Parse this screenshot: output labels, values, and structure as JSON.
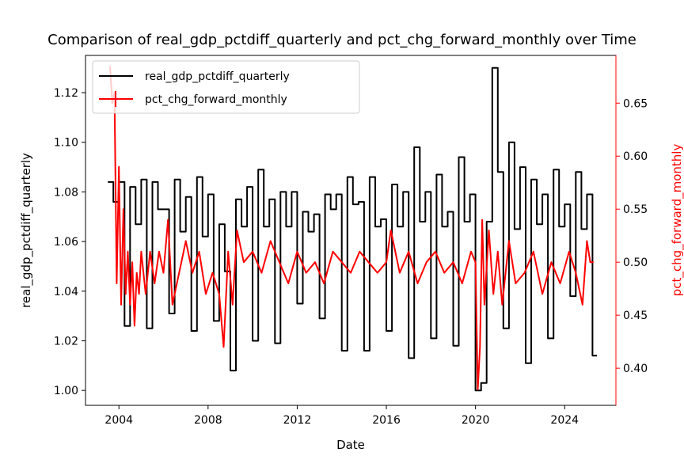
{
  "chart_data": {
    "type": "line",
    "title": "Comparison of real_gdp_pctdiff_quarterly and pct_chg_forward_monthly over Time",
    "xlabel": "Date",
    "ylabel_left": "real_gdp_pctdiff_quarterly",
    "ylabel_right": "pct_chg_forward_monthly",
    "xlim": [
      2002.5,
      2026.3
    ],
    "ylim_left": [
      0.994,
      1.135
    ],
    "ylim_right": [
      0.365,
      0.695
    ],
    "x_ticks": [
      2004,
      2008,
      2012,
      2016,
      2020,
      2024
    ],
    "x_tick_labels": [
      "2004",
      "2008",
      "2012",
      "2016",
      "2020",
      "2024"
    ],
    "y_left_ticks": [
      1.0,
      1.02,
      1.04,
      1.06,
      1.08,
      1.1,
      1.12
    ],
    "y_left_tick_labels": [
      "1.00",
      "1.02",
      "1.04",
      "1.06",
      "1.08",
      "1.10",
      "1.12"
    ],
    "y_right_ticks": [
      0.4,
      0.45,
      0.5,
      0.55,
      0.6,
      0.65
    ],
    "y_right_tick_labels": [
      "0.40",
      "0.45",
      "0.50",
      "0.55",
      "0.60",
      "0.65"
    ],
    "legend_position": "top-left",
    "grid": false,
    "series": [
      {
        "name": "real_gdp_pctdiff_quarterly",
        "axis": "left",
        "style": "step",
        "color": "#000000",
        "x": [
          2003.5,
          2003.75,
          2004.0,
          2004.25,
          2004.5,
          2004.75,
          2005.0,
          2005.25,
          2005.5,
          2005.75,
          2006.0,
          2006.25,
          2006.5,
          2006.75,
          2007.0,
          2007.25,
          2007.5,
          2007.75,
          2008.0,
          2008.25,
          2008.5,
          2008.75,
          2009.0,
          2009.25,
          2009.5,
          2009.75,
          2010.0,
          2010.25,
          2010.5,
          2010.75,
          2011.0,
          2011.25,
          2011.5,
          2011.75,
          2012.0,
          2012.25,
          2012.5,
          2012.75,
          2013.0,
          2013.25,
          2013.5,
          2013.75,
          2014.0,
          2014.25,
          2014.5,
          2014.75,
          2015.0,
          2015.25,
          2015.5,
          2015.75,
          2016.0,
          2016.25,
          2016.5,
          2016.75,
          2017.0,
          2017.25,
          2017.5,
          2017.75,
          2018.0,
          2018.25,
          2018.5,
          2018.75,
          2019.0,
          2019.25,
          2019.5,
          2019.75,
          2020.0,
          2020.25,
          2020.5,
          2020.75,
          2021.0,
          2021.25,
          2021.5,
          2021.75,
          2022.0,
          2022.25,
          2022.5,
          2022.75,
          2023.0,
          2023.25,
          2023.5,
          2023.75,
          2024.0,
          2024.25,
          2024.5,
          2024.75,
          2025.0,
          2025.25
        ],
        "y": [
          1.084,
          1.076,
          1.084,
          1.026,
          1.082,
          1.067,
          1.085,
          1.025,
          1.084,
          1.073,
          1.073,
          1.031,
          1.085,
          1.064,
          1.078,
          1.024,
          1.086,
          1.062,
          1.079,
          1.028,
          1.067,
          1.048,
          1.008,
          1.077,
          1.066,
          1.082,
          1.02,
          1.089,
          1.066,
          1.077,
          1.019,
          1.08,
          1.066,
          1.08,
          1.035,
          1.072,
          1.064,
          1.071,
          1.029,
          1.079,
          1.073,
          1.079,
          1.016,
          1.086,
          1.075,
          1.076,
          1.016,
          1.086,
          1.066,
          1.069,
          1.024,
          1.083,
          1.066,
          1.08,
          1.013,
          1.098,
          1.068,
          1.08,
          1.021,
          1.087,
          1.066,
          1.072,
          1.018,
          1.094,
          1.068,
          1.079,
          1.0,
          1.003,
          1.068,
          1.13,
          1.088,
          1.025,
          1.1,
          1.065,
          1.09,
          1.011,
          1.085,
          1.067,
          1.079,
          1.021,
          1.089,
          1.066,
          1.075,
          1.038,
          1.088,
          1.065,
          1.079,
          1.014
        ]
      },
      {
        "name": "pct_chg_forward_monthly",
        "axis": "right",
        "style": "line",
        "color": "#ff0000",
        "x": [
          2003.6,
          2003.7,
          2003.8,
          2003.9,
          2004.0,
          2004.1,
          2004.2,
          2004.3,
          2004.4,
          2004.5,
          2004.6,
          2004.7,
          2004.8,
          2004.9,
          2005.0,
          2005.2,
          2005.4,
          2005.6,
          2005.8,
          2006.0,
          2006.2,
          2006.4,
          2006.6,
          2006.8,
          2007.0,
          2007.3,
          2007.6,
          2007.9,
          2008.2,
          2008.5,
          2008.7,
          2008.9,
          2009.1,
          2009.3,
          2009.6,
          2010.0,
          2010.4,
          2010.8,
          2011.2,
          2011.6,
          2012.0,
          2012.4,
          2012.8,
          2013.2,
          2013.6,
          2014.0,
          2014.4,
          2014.8,
          2015.2,
          2015.6,
          2016.0,
          2016.2,
          2016.6,
          2017.0,
          2017.4,
          2017.8,
          2018.2,
          2018.6,
          2019.0,
          2019.4,
          2019.8,
          2020.0,
          2020.1,
          2020.2,
          2020.3,
          2020.4,
          2020.6,
          2020.8,
          2021.0,
          2021.2,
          2021.5,
          2021.8,
          2022.2,
          2022.6,
          2023.0,
          2023.4,
          2023.8,
          2024.2,
          2024.5,
          2024.8,
          2025.0,
          2025.15,
          2025.3
        ],
        "y": [
          0.685,
          0.65,
          0.66,
          0.48,
          0.59,
          0.46,
          0.55,
          0.47,
          0.51,
          0.46,
          0.5,
          0.44,
          0.49,
          0.47,
          0.51,
          0.47,
          0.51,
          0.48,
          0.51,
          0.49,
          0.54,
          0.46,
          0.48,
          0.5,
          0.52,
          0.49,
          0.51,
          0.47,
          0.49,
          0.47,
          0.42,
          0.51,
          0.46,
          0.53,
          0.5,
          0.51,
          0.49,
          0.52,
          0.5,
          0.48,
          0.51,
          0.49,
          0.5,
          0.48,
          0.51,
          0.5,
          0.49,
          0.51,
          0.5,
          0.49,
          0.5,
          0.53,
          0.49,
          0.51,
          0.48,
          0.5,
          0.51,
          0.49,
          0.5,
          0.48,
          0.51,
          0.5,
          0.38,
          0.42,
          0.54,
          0.46,
          0.53,
          0.47,
          0.51,
          0.46,
          0.52,
          0.48,
          0.49,
          0.51,
          0.47,
          0.5,
          0.48,
          0.51,
          0.49,
          0.46,
          0.52,
          0.5,
          0.5
        ]
      }
    ]
  }
}
